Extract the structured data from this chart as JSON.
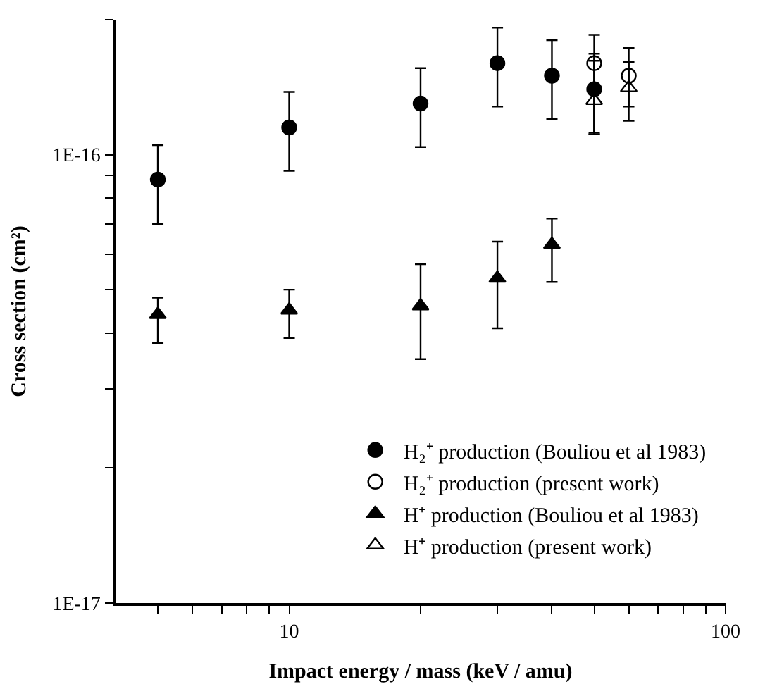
{
  "chart_data": {
    "type": "scatter",
    "xlabel": "Impact energy / mass (keV / amu)",
    "ylabel": "Cross section (cm²)",
    "log": "xy",
    "legend": "bottom right",
    "xlim": [
      4,
      100
    ],
    "ylim": [
      1e-17,
      2e-16
    ],
    "xticks": [
      {
        "value": 5,
        "label": null
      },
      {
        "value": 6,
        "label": null
      },
      {
        "value": 7,
        "label": null
      },
      {
        "value": 8,
        "label": null
      },
      {
        "value": 9,
        "label": null
      },
      10,
      {
        "value": 20,
        "label": null
      },
      {
        "value": 30,
        "label": null
      },
      {
        "value": 40,
        "label": null
      },
      {
        "value": 50,
        "label": null
      },
      {
        "value": 60,
        "label": null
      },
      {
        "value": 70,
        "label": null
      },
      {
        "value": 80,
        "label": null
      },
      {
        "value": 90,
        "label": null
      },
      100
    ],
    "yticks": [
      {
        "value": 1e-17,
        "label": "1E-17"
      },
      {
        "value": 2e-17,
        "label": null
      },
      {
        "value": 3e-17,
        "label": null
      },
      {
        "value": 4e-17,
        "label": null
      },
      {
        "value": 5e-17,
        "label": null
      },
      {
        "value": 6e-17,
        "label": null
      },
      {
        "value": 7e-17,
        "label": null
      },
      {
        "value": 8e-17,
        "label": null
      },
      {
        "value": 9e-17,
        "label": null
      },
      {
        "value": 1e-16,
        "label": "1E-16"
      },
      {
        "value": 2e-16,
        "label": null
      }
    ],
    "series": [
      {
        "name": "H₂⁺ production (Bouliou et al 1983)",
        "color": "#000000",
        "marker": "circle",
        "x": [
          5,
          10,
          20,
          30,
          40,
          50
        ],
        "values": [
          8.8e-17,
          1.15e-16,
          1.3e-16,
          1.6e-16,
          1.5e-16,
          1.4e-16
        ],
        "errors": [
          [
            7e-17,
            1.05e-16
          ],
          [
            9.2e-17,
            1.38e-16
          ],
          [
            1.04e-16,
            1.56e-16
          ],
          [
            1.28e-16,
            1.92e-16
          ],
          [
            1.2e-16,
            1.8e-16
          ],
          [
            1.11e-16,
            1.68e-16
          ]
        ]
      },
      {
        "name": "H₂⁺ production (present work)",
        "color": "#000000",
        "marker": "circle-open",
        "x": [
          50,
          60
        ],
        "values": [
          1.6e-16,
          1.5e-16
        ],
        "errors": [
          [
            1.12e-16,
            1.85e-16
          ],
          [
            1.19e-16,
            1.73e-16
          ]
        ]
      },
      {
        "name": "H⁺ production (Bouliou et al 1983)",
        "color": "#000000",
        "marker": "triangle",
        "x": [
          5,
          10,
          20,
          30,
          40
        ],
        "values": [
          4.4e-17,
          4.5e-17,
          4.6e-17,
          5.3e-17,
          6.3e-17
        ],
        "errors": [
          [
            3.8e-17,
            4.8e-17
          ],
          [
            3.9e-17,
            5e-17
          ],
          [
            3.5e-17,
            5.7e-17
          ],
          [
            4.1e-17,
            6.4e-17
          ],
          [
            5.2e-17,
            7.2e-17
          ]
        ]
      },
      {
        "name": "H⁺ production (present work)",
        "color": "#000000",
        "marker": "triangle-open",
        "x": [
          50,
          60
        ],
        "values": [
          1.32e-16,
          1.41e-16
        ],
        "errors": [
          [
            1.11e-16,
            1.62e-16
          ],
          [
            1.28e-16,
            1.61e-16
          ]
        ]
      }
    ]
  }
}
